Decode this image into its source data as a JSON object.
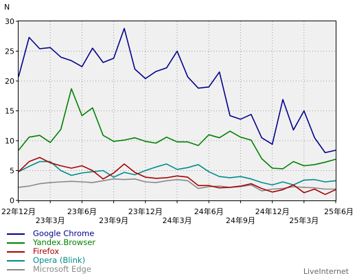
{
  "chart_data": {
    "type": "line",
    "ylabel": "N",
    "ylim": [
      0,
      30
    ],
    "yticks": [
      0,
      5,
      10,
      15,
      20,
      25,
      30
    ],
    "xlim": [
      0,
      30
    ],
    "xticks_top": [
      {
        "pos": 0,
        "label": "22年12月"
      },
      {
        "pos": 6,
        "label": "23年6月"
      },
      {
        "pos": 12,
        "label": "23年12月"
      },
      {
        "pos": 18,
        "label": "24年6月"
      },
      {
        "pos": 24,
        "label": "24年12月"
      },
      {
        "pos": 30,
        "label": "25年6月"
      }
    ],
    "xticks_bottom": [
      {
        "pos": 3,
        "label": "23年3月"
      },
      {
        "pos": 9,
        "label": "23年9月"
      },
      {
        "pos": 15,
        "label": "24年3月"
      },
      {
        "pos": 21,
        "label": "24年9月"
      },
      {
        "pos": 27,
        "label": "25年3月"
      }
    ],
    "grid": true,
    "legend_position": "bottom-left",
    "series": [
      {
        "name": "Google Chrome",
        "color": "#00008b",
        "values": [
          20.7,
          27.3,
          25.4,
          25.6,
          24.0,
          23.4,
          22.4,
          25.5,
          23.1,
          23.8,
          28.8,
          22.0,
          20.4,
          21.6,
          22.2,
          25.0,
          20.7,
          18.8,
          19.0,
          21.5,
          14.2,
          13.6,
          14.4,
          10.5,
          9.4,
          16.9,
          11.8,
          15.0,
          10.5,
          8.0,
          8.4
        ]
      },
      {
        "name": "Yandex.Browser",
        "color": "#008000",
        "values": [
          8.4,
          10.6,
          10.9,
          9.7,
          11.9,
          18.7,
          14.2,
          15.5,
          10.9,
          9.9,
          10.1,
          10.5,
          9.9,
          9.6,
          10.6,
          9.8,
          9.8,
          9.2,
          11.0,
          10.5,
          11.6,
          10.6,
          10.1,
          7.0,
          5.4,
          5.3,
          6.5,
          5.8,
          6.0,
          6.4,
          6.9
        ]
      },
      {
        "name": "Firefox",
        "color": "#aa0000",
        "values": [
          4.8,
          6.5,
          7.2,
          6.3,
          5.8,
          5.4,
          5.8,
          5.0,
          3.6,
          4.6,
          6.1,
          4.7,
          3.9,
          3.7,
          3.8,
          4.1,
          3.9,
          2.5,
          2.5,
          2.1,
          2.2,
          2.4,
          2.8,
          2.0,
          1.4,
          1.8,
          2.6,
          1.3,
          1.9,
          1.0,
          1.8
        ]
      },
      {
        "name": "Opera (Blink)",
        "color": "#008b8b",
        "values": [
          4.8,
          5.7,
          6.5,
          6.5,
          5.0,
          4.2,
          4.6,
          4.8,
          5.0,
          3.9,
          4.7,
          4.3,
          5.0,
          5.6,
          6.1,
          5.2,
          5.5,
          6.0,
          4.8,
          4.0,
          3.8,
          4.0,
          3.6,
          3.0,
          2.6,
          3.1,
          2.6,
          3.4,
          3.5,
          3.1,
          3.3
        ]
      },
      {
        "name": "Microsoft Edge",
        "color": "#888888",
        "values": [
          2.2,
          2.4,
          2.8,
          3.0,
          3.1,
          3.2,
          3.1,
          3.0,
          3.3,
          3.6,
          3.5,
          3.6,
          3.1,
          3.0,
          3.3,
          3.5,
          3.3,
          2.0,
          2.3,
          2.4,
          2.2,
          2.3,
          2.6,
          1.6,
          1.9,
          2.0,
          2.3,
          2.2,
          2.1,
          1.9,
          1.9
        ]
      }
    ]
  },
  "footer": {
    "credit": "LiveInternet"
  }
}
